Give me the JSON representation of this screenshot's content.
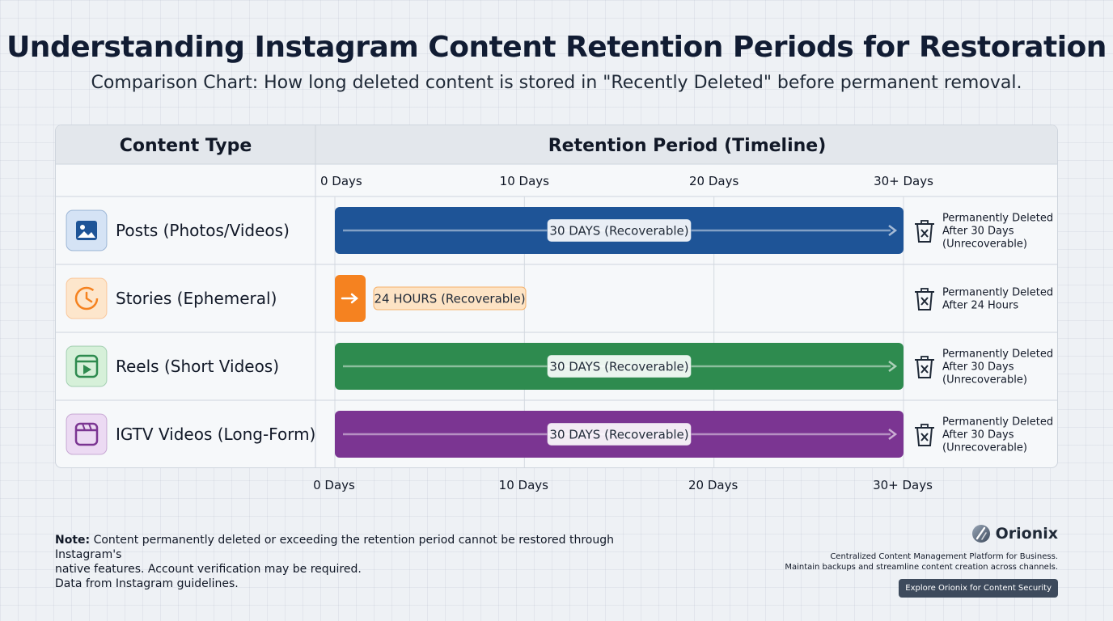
{
  "title": "Understanding Instagram Content Retention Periods for Restoration",
  "subtitle": "Comparison Chart: How long deleted content is stored in \"Recently Deleted\" before permanent removal.",
  "chart_data": {
    "type": "bar",
    "orientation": "horizontal",
    "column_headers": [
      "Content Type",
      "Retention Period (Timeline)"
    ],
    "x_ticks": [
      "0 Days",
      "10 Days",
      "20 Days",
      "30+ Days"
    ],
    "xlim": [
      0,
      30
    ],
    "grid": true,
    "categories": [
      "Posts (Photos/Videos)",
      "Stories (Ephemeral)",
      "Reels (Short Videos)",
      "IGTV Videos (Long-Form)"
    ],
    "values": [
      30,
      1,
      30,
      30
    ],
    "bar_labels": [
      "30 DAYS (Recoverable)",
      "24 HOURS (Recoverable)",
      "30 DAYS (Recoverable)",
      "30 DAYS (Recoverable)"
    ],
    "outcomes": [
      [
        "Permanently Deleted",
        "After 30 Days",
        "(Unrecoverable)"
      ],
      [
        "Permanently Deleted",
        "After 24 Hours"
      ],
      [
        "Permanently Deleted",
        "After 30 Days",
        "(Unrecoverable)"
      ],
      [
        "Permanently Deleted",
        "After 30 Days",
        "(Unrecoverable)"
      ]
    ],
    "colors": [
      "#1e5497",
      "#f58220",
      "#2e8b4f",
      "#7b3592"
    ],
    "icon_backgrounds": [
      "#d5e3f5",
      "#fde6cc",
      "#d6f0d9",
      "#ecdaf3"
    ],
    "icons": [
      "image-icon",
      "clock-icon",
      "reel-play-icon",
      "video-clapper-icon"
    ],
    "outcome_icon": "trash-icon"
  },
  "footnote": {
    "label": "Note:",
    "line1": " Content permanently deleted or exceeding the retention period cannot be restored through Instagram's",
    "line2": "native features.  Account verification may be required.",
    "line3": "Data from Instagram guidelines."
  },
  "brand": {
    "name": "Orionix",
    "tagline1": "Centralized Content Management Platform for Business.",
    "tagline2": "Maintain backups and streamline content creation across channels.",
    "button": "Explore Orionix for Content Security"
  }
}
